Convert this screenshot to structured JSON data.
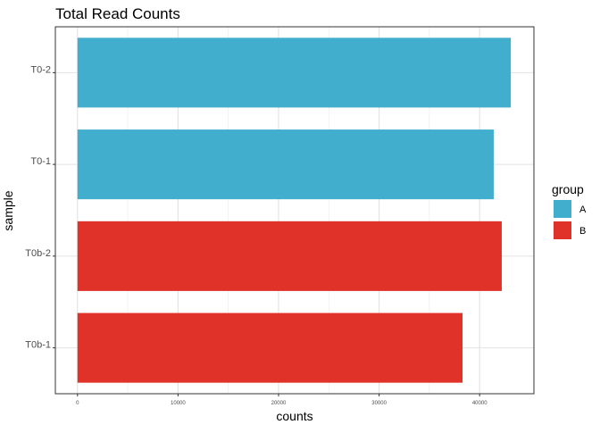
{
  "chart_data": {
    "type": "bar",
    "orientation": "horizontal",
    "title": "Total Read Counts",
    "xlabel": "counts",
    "ylabel": "sample",
    "xlim": [
      -2200,
      45400
    ],
    "x_ticks": [
      0,
      10000,
      20000,
      30000,
      40000
    ],
    "categories": [
      "T0b-1",
      "T0b-2",
      "T0-1",
      "T0-2"
    ],
    "values": [
      38300,
      42200,
      41400,
      43100
    ],
    "groups": [
      "B",
      "B",
      "A",
      "A"
    ],
    "grid": true,
    "legend": {
      "title": "group",
      "position": "right",
      "items": [
        {
          "label": "A",
          "color": "#42AECE"
        },
        {
          "label": "B",
          "color": "#E1322A"
        }
      ]
    },
    "colors": {
      "A": "#42AECE",
      "B": "#E1322A"
    }
  }
}
